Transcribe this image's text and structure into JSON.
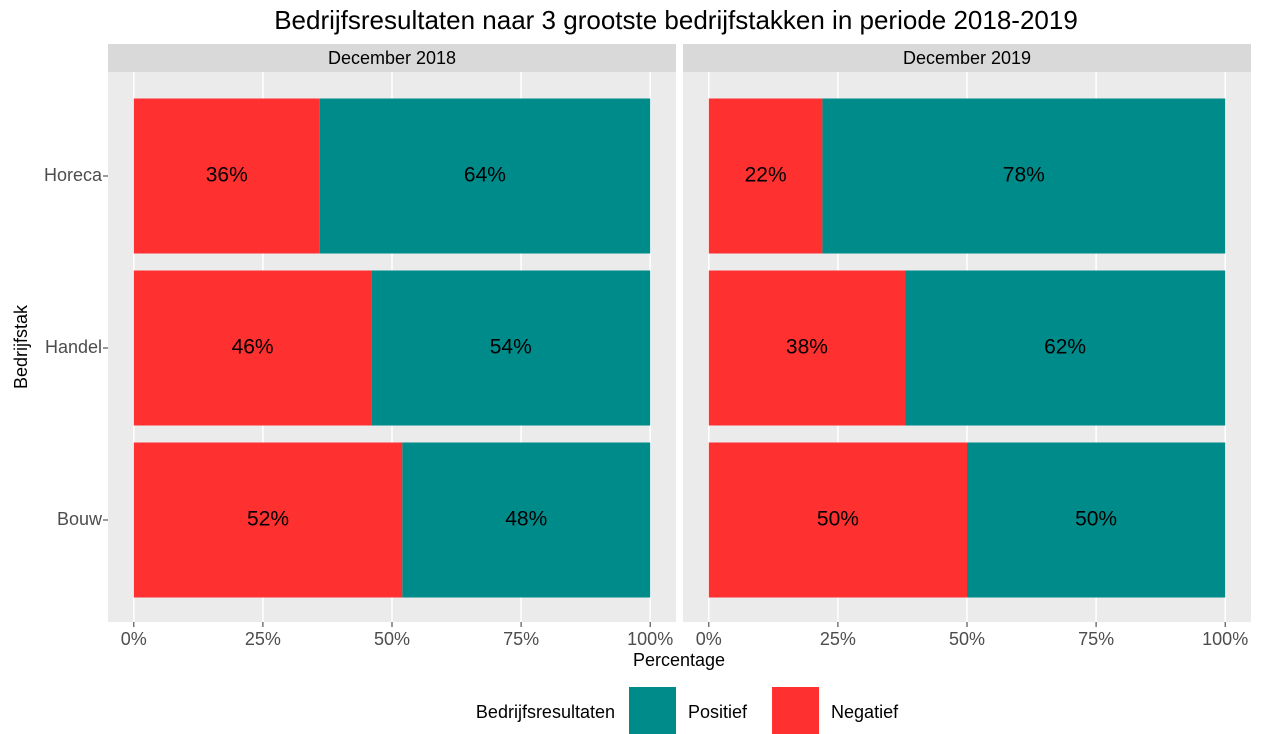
{
  "chart_data": {
    "type": "bar",
    "title": "Bedrijfsresultaten naar 3 grootste bedrijfstakken in periode 2018-2019",
    "xlabel": "Percentage",
    "ylabel": "Bedrijfstak",
    "legend_title": "Bedrijfsresultaten",
    "xlim": [
      -5,
      105
    ],
    "xticks": [
      {
        "value": 0,
        "label": "0%"
      },
      {
        "value": 25,
        "label": "25%"
      },
      {
        "value": 50,
        "label": "50%"
      },
      {
        "value": 75,
        "label": "75%"
      },
      {
        "value": 100,
        "label": "100%"
      }
    ],
    "grid": true,
    "legend": "bottom",
    "facets": [
      {
        "title": "December 2018",
        "categories": [
          "Horeca",
          "Handel",
          "Bouw"
        ],
        "series": [
          {
            "name": "Positief",
            "color": "#008b8b",
            "values": [
              64,
              54,
              48
            ],
            "value_labels": [
              "64%",
              "54%",
              "48%"
            ]
          },
          {
            "name": "Negatief",
            "color": "#ff3030",
            "values": [
              36,
              46,
              52
            ],
            "value_labels": [
              "36%",
              "46%",
              "52%"
            ]
          }
        ]
      },
      {
        "title": "December 2019",
        "categories": [
          "Horeca",
          "Handel",
          "Bouw"
        ],
        "series": [
          {
            "name": "Positief",
            "color": "#008b8b",
            "values": [
              78,
              62,
              50
            ],
            "value_labels": [
              "78%",
              "62%",
              "50%"
            ]
          },
          {
            "name": "Negatief",
            "color": "#ff3030",
            "values": [
              22,
              38,
              50
            ],
            "value_labels": [
              "22%",
              "38%",
              "50%"
            ]
          }
        ]
      }
    ]
  }
}
